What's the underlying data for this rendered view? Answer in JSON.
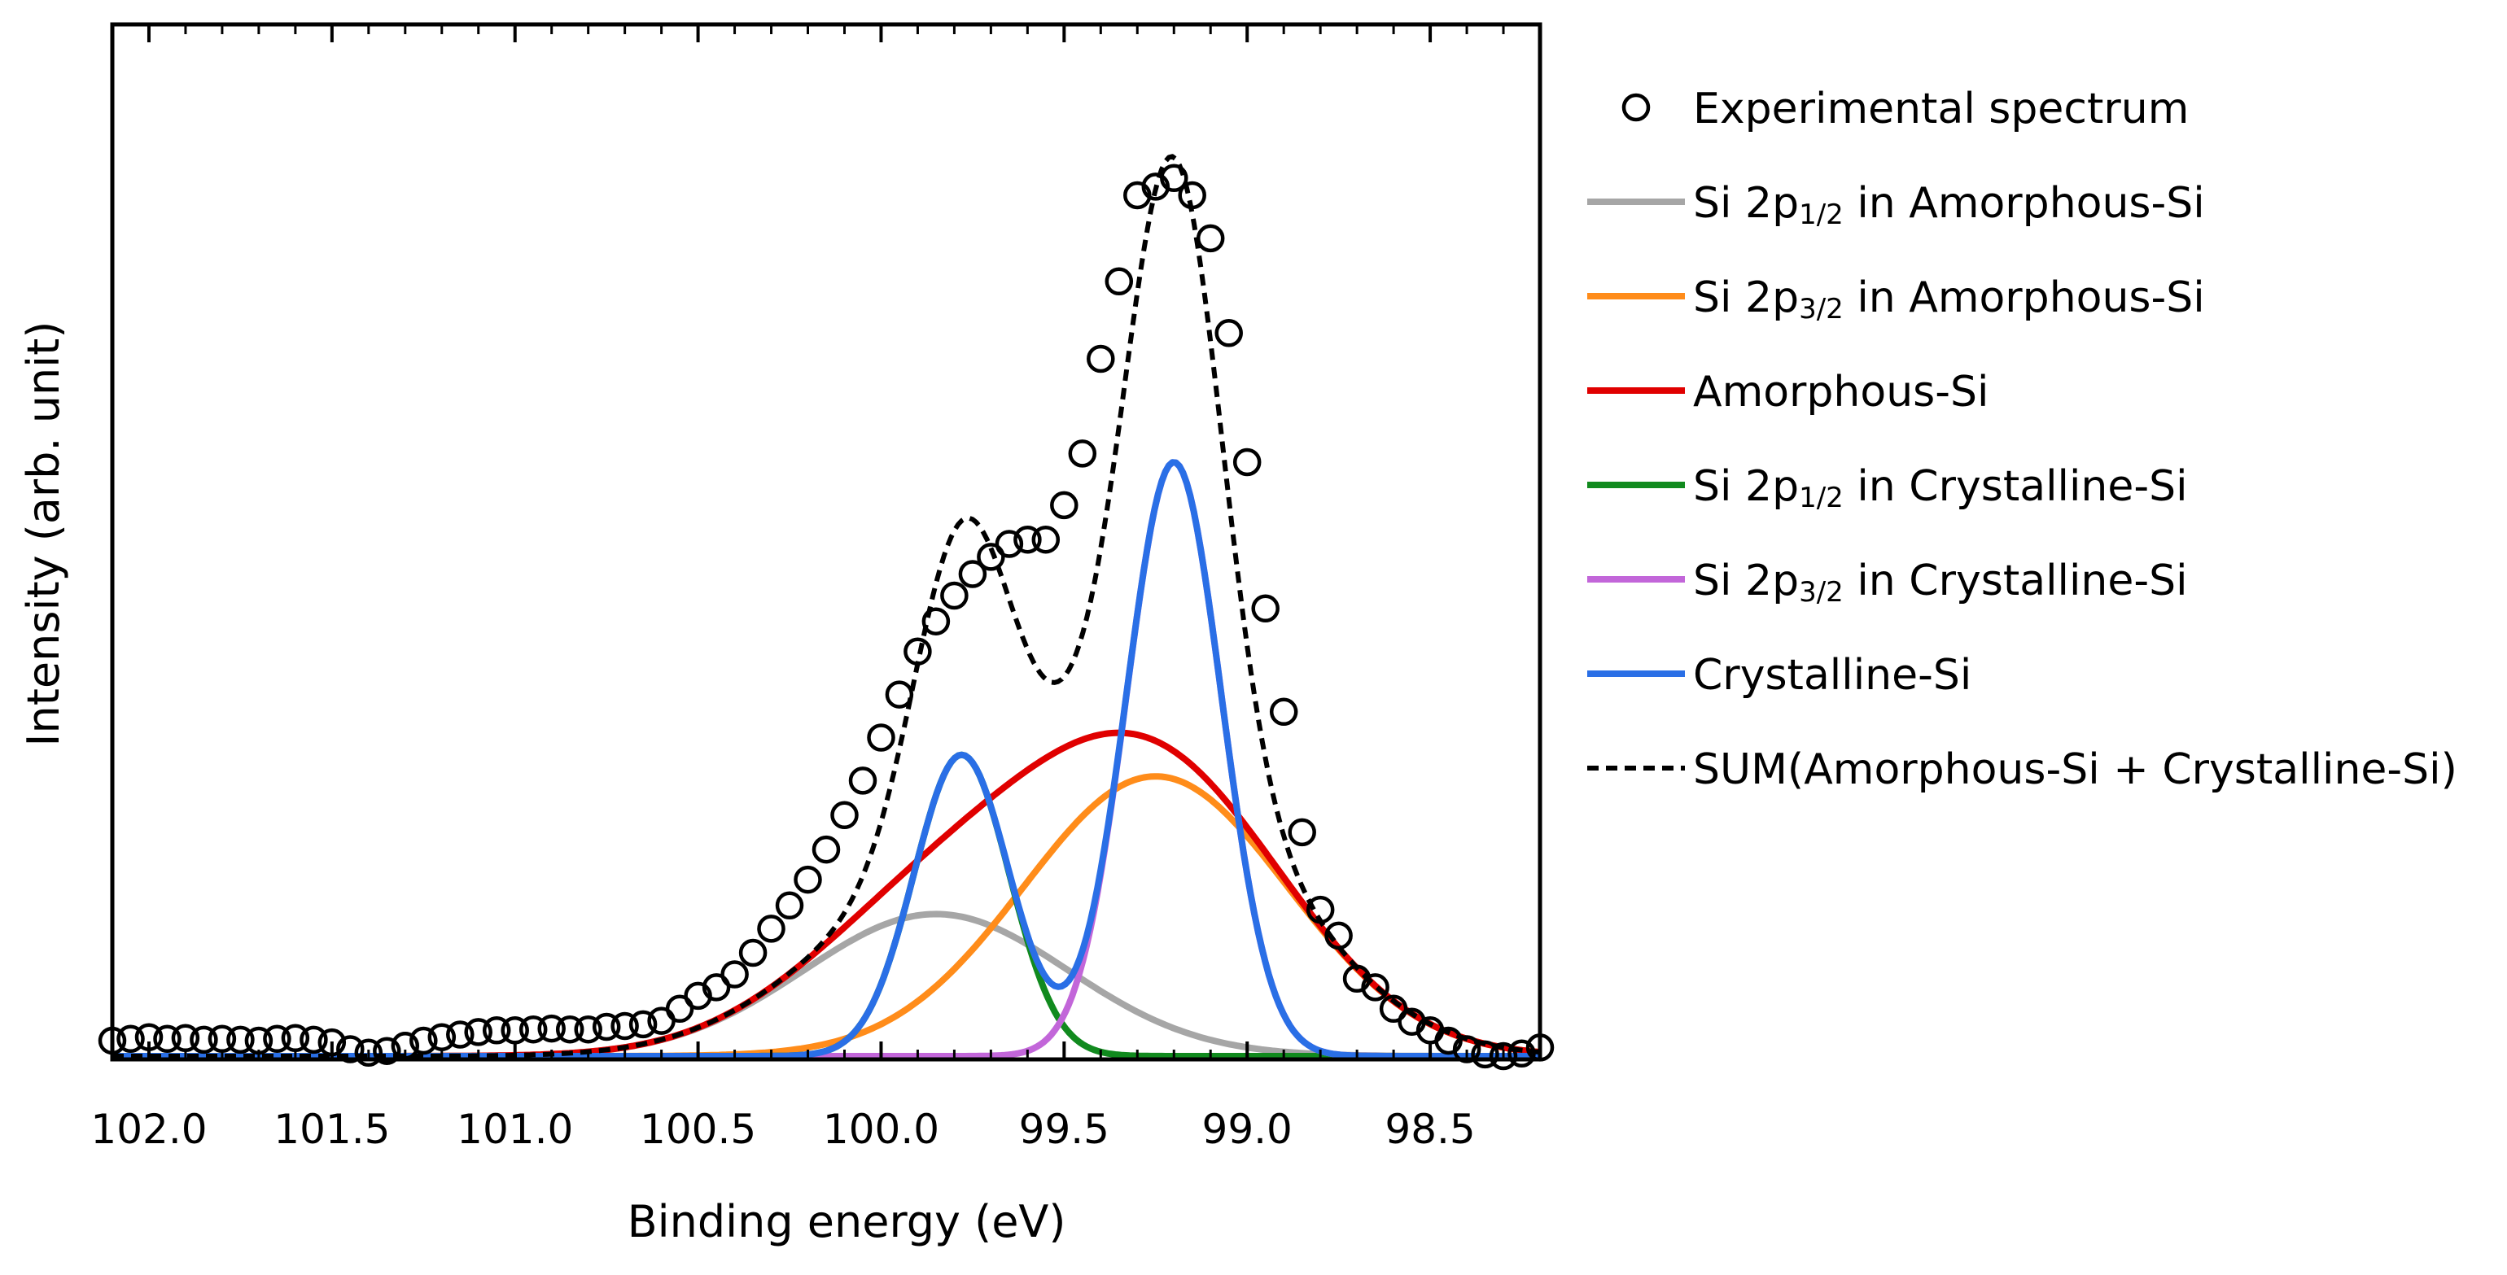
{
  "chart_data": {
    "type": "line",
    "xlabel": "Binding energy (eV)",
    "ylabel": "Intensity (arb. unit)",
    "xlim": [
      102.1,
      98.2
    ],
    "x_reversed": true,
    "ylim": [
      0,
      1
    ],
    "y_ticks_labeled": false,
    "x_ticks": [
      {
        "value": 102.0,
        "label": "102.0"
      },
      {
        "value": 101.5,
        "label": "101.5"
      },
      {
        "value": 101.0,
        "label": "101.0"
      },
      {
        "value": 100.5,
        "label": "100.5"
      },
      {
        "value": 100.0,
        "label": "100.0"
      },
      {
        "value": 99.5,
        "label": "99.5"
      },
      {
        "value": 99.0,
        "label": "99.0"
      },
      {
        "value": 98.5,
        "label": "98.5"
      }
    ],
    "legend_position": "right",
    "grid": false,
    "experimental": {
      "name": "Experimental spectrum",
      "marker": "open-circle",
      "color": "#000000",
      "x": [
        102.1,
        102.05,
        102.0,
        101.95,
        101.9,
        101.85,
        101.8,
        101.75,
        101.7,
        101.65,
        101.6,
        101.55,
        101.5,
        101.45,
        101.4,
        101.35,
        101.3,
        101.25,
        101.2,
        101.15,
        101.1,
        101.05,
        101.0,
        100.95,
        100.9,
        100.85,
        100.8,
        100.75,
        100.7,
        100.65,
        100.6,
        100.55,
        100.5,
        100.45,
        100.4,
        100.35,
        100.3,
        100.25,
        100.2,
        100.15,
        100.1,
        100.05,
        100.0,
        99.95,
        99.9,
        99.85,
        99.8,
        99.75,
        99.7,
        99.65,
        99.6,
        99.55,
        99.5,
        99.45,
        99.4,
        99.35,
        99.3,
        99.25,
        99.2,
        99.15,
        99.1,
        99.05,
        99.0,
        98.95,
        98.9,
        98.85,
        98.8,
        98.75,
        98.7,
        98.65,
        98.6,
        98.55,
        98.5,
        98.45,
        98.4,
        98.35,
        98.3,
        98.25,
        98.2
      ],
      "y": [
        0.018,
        0.02,
        0.022,
        0.02,
        0.021,
        0.019,
        0.02,
        0.019,
        0.018,
        0.02,
        0.021,
        0.019,
        0.016,
        0.008,
        0.004,
        0.006,
        0.012,
        0.018,
        0.022,
        0.025,
        0.028,
        0.03,
        0.03,
        0.031,
        0.032,
        0.031,
        0.031,
        0.034,
        0.035,
        0.037,
        0.041,
        0.055,
        0.07,
        0.08,
        0.095,
        0.12,
        0.148,
        0.175,
        0.205,
        0.24,
        0.28,
        0.32,
        0.37,
        0.42,
        0.47,
        0.505,
        0.535,
        0.56,
        0.58,
        0.595,
        0.6,
        0.6,
        0.64,
        0.7,
        0.81,
        0.9,
        1.0,
        1.01,
        1.02,
        1.0,
        0.95,
        0.84,
        0.69,
        0.52,
        0.4,
        0.26,
        0.17,
        0.14,
        0.09,
        0.08,
        0.055,
        0.04,
        0.03,
        0.018,
        0.008,
        0.002,
        0.0,
        0.003,
        0.01
      ]
    },
    "series": [
      {
        "name": "Si 2p1/2 in Amorphous-Si",
        "color": "#a6a6a6",
        "dash": "solid",
        "model": {
          "type": "gaussian",
          "center": 99.85,
          "height": 0.165,
          "sigma": 0.36
        }
      },
      {
        "name": "Si 2p3/2 in Amorphous-Si",
        "color": "#ff8c1a",
        "dash": "solid",
        "model": {
          "type": "gaussian",
          "center": 99.25,
          "height": 0.325,
          "sigma": 0.36
        }
      },
      {
        "name": "Amorphous-Si",
        "color": "#e00000",
        "dash": "solid",
        "model": {
          "type": "sum",
          "of": [
            0,
            1
          ]
        }
      },
      {
        "name": "Si 2p1/2 in Crystalline-Si",
        "color": "#118a1e",
        "dash": "solid",
        "model": {
          "type": "gaussian",
          "center": 99.78,
          "height": 0.35,
          "sigma": 0.13
        }
      },
      {
        "name": "Si 2p3/2 in Crystalline-Si",
        "color": "#c266d9",
        "dash": "solid",
        "model": {
          "type": "gaussian",
          "center": 99.2,
          "height": 0.69,
          "sigma": 0.13
        }
      },
      {
        "name": "Crystalline-Si",
        "color": "#2a6fe6",
        "dash": "solid",
        "model": {
          "type": "sum",
          "of": [
            3,
            4
          ]
        }
      },
      {
        "name": "SUM(Amorphous-Si + Crystalline-Si)",
        "color": "#000000",
        "dash": "dashed",
        "model": {
          "type": "sum",
          "of": [
            2,
            5
          ]
        }
      }
    ],
    "legend": [
      {
        "label": "Experimental spectrum",
        "base": "Experimental spectrum",
        "sub": "",
        "rest": ""
      },
      {
        "label": "Si 2p1/2 in Amorphous-Si",
        "base": "Si 2p",
        "sub": "1/2",
        "rest": " in Amorphous-Si"
      },
      {
        "label": "Si 2p3/2 in Amorphous-Si",
        "base": "Si 2p",
        "sub": "3/2",
        "rest": " in Amorphous-Si"
      },
      {
        "label": "Amorphous-Si",
        "base": "Amorphous-Si",
        "sub": "",
        "rest": ""
      },
      {
        "label": "Si 2p1/2 in Crystalline-Si",
        "base": "Si 2p",
        "sub": "1/2",
        "rest": " in Crystalline-Si"
      },
      {
        "label": "Si 2p3/2 in Crystalline-Si",
        "base": "Si 2p",
        "sub": "3/2",
        "rest": " in Crystalline-Si"
      },
      {
        "label": "Crystalline-Si",
        "base": "Crystalline-Si",
        "sub": "",
        "rest": ""
      },
      {
        "label": "SUM(Amorphous-Si + Crystalline-Si)",
        "base": "SUM(Amorphous-Si + Crystalline-Si)",
        "sub": "",
        "rest": ""
      }
    ]
  }
}
